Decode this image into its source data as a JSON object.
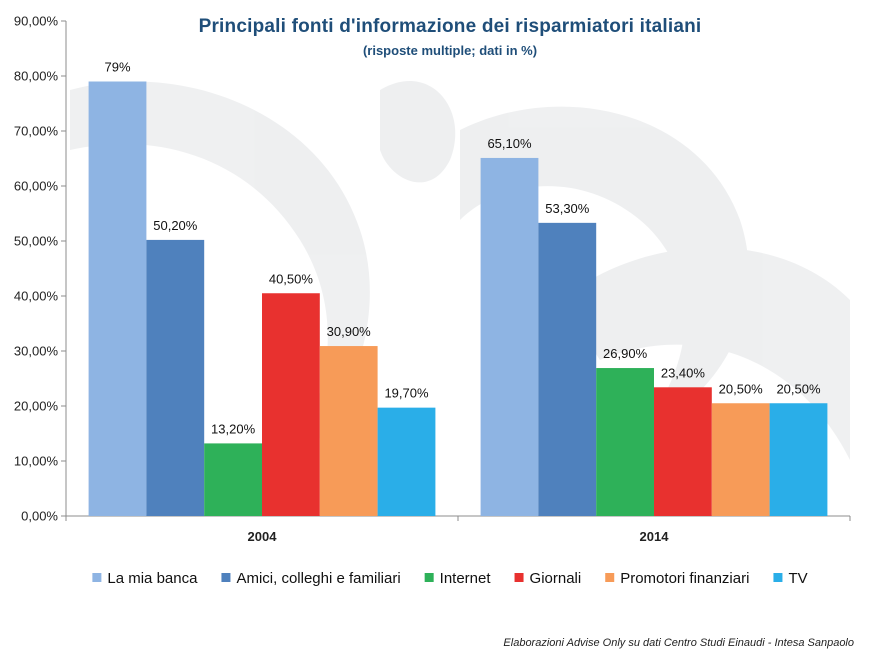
{
  "chart_data": {
    "type": "bar",
    "title": "Principali  fonti d'informazione  dei risparmiatori  italiani",
    "subtitle": "(risposte multiple; dati in %)",
    "source": "Elaborazioni Advise Only su dati Centro Studi  Einaudi - Intesa Sanpaolo",
    "categories": [
      "2004",
      "2014"
    ],
    "y_ticks": [
      "0,00%",
      "10,00%",
      "20,00%",
      "30,00%",
      "40,00%",
      "50,00%",
      "60,00%",
      "70,00%",
      "80,00%",
      "90,00%"
    ],
    "ylim": [
      0,
      90
    ],
    "legend_position": "bottom",
    "grid": false,
    "series": [
      {
        "name": "La mia banca",
        "color": "#8eb4e3",
        "values": [
          79,
          65.1
        ],
        "labels": [
          "79%",
          "65,10%"
        ]
      },
      {
        "name": "Amici, colleghi e familiari",
        "color": "#4f81bd",
        "values": [
          50.2,
          53.3
        ],
        "labels": [
          "50,20%",
          "53,30%"
        ]
      },
      {
        "name": "Internet",
        "color": "#2eb159",
        "values": [
          13.2,
          26.9
        ],
        "labels": [
          "13,20%",
          "26,90%"
        ]
      },
      {
        "name": "Giornali",
        "color": "#e8312f",
        "values": [
          40.5,
          23.4
        ],
        "labels": [
          "40,50%",
          "23,40%"
        ]
      },
      {
        "name": "Promotori finanziari",
        "color": "#f79b58",
        "values": [
          30.9,
          20.5
        ],
        "labels": [
          "30,90%",
          "20,50%"
        ]
      },
      {
        "name": "TV",
        "color": "#2aaee8",
        "values": [
          19.7,
          20.5
        ],
        "labels": [
          "19,70%",
          "20,50%"
        ]
      }
    ]
  }
}
